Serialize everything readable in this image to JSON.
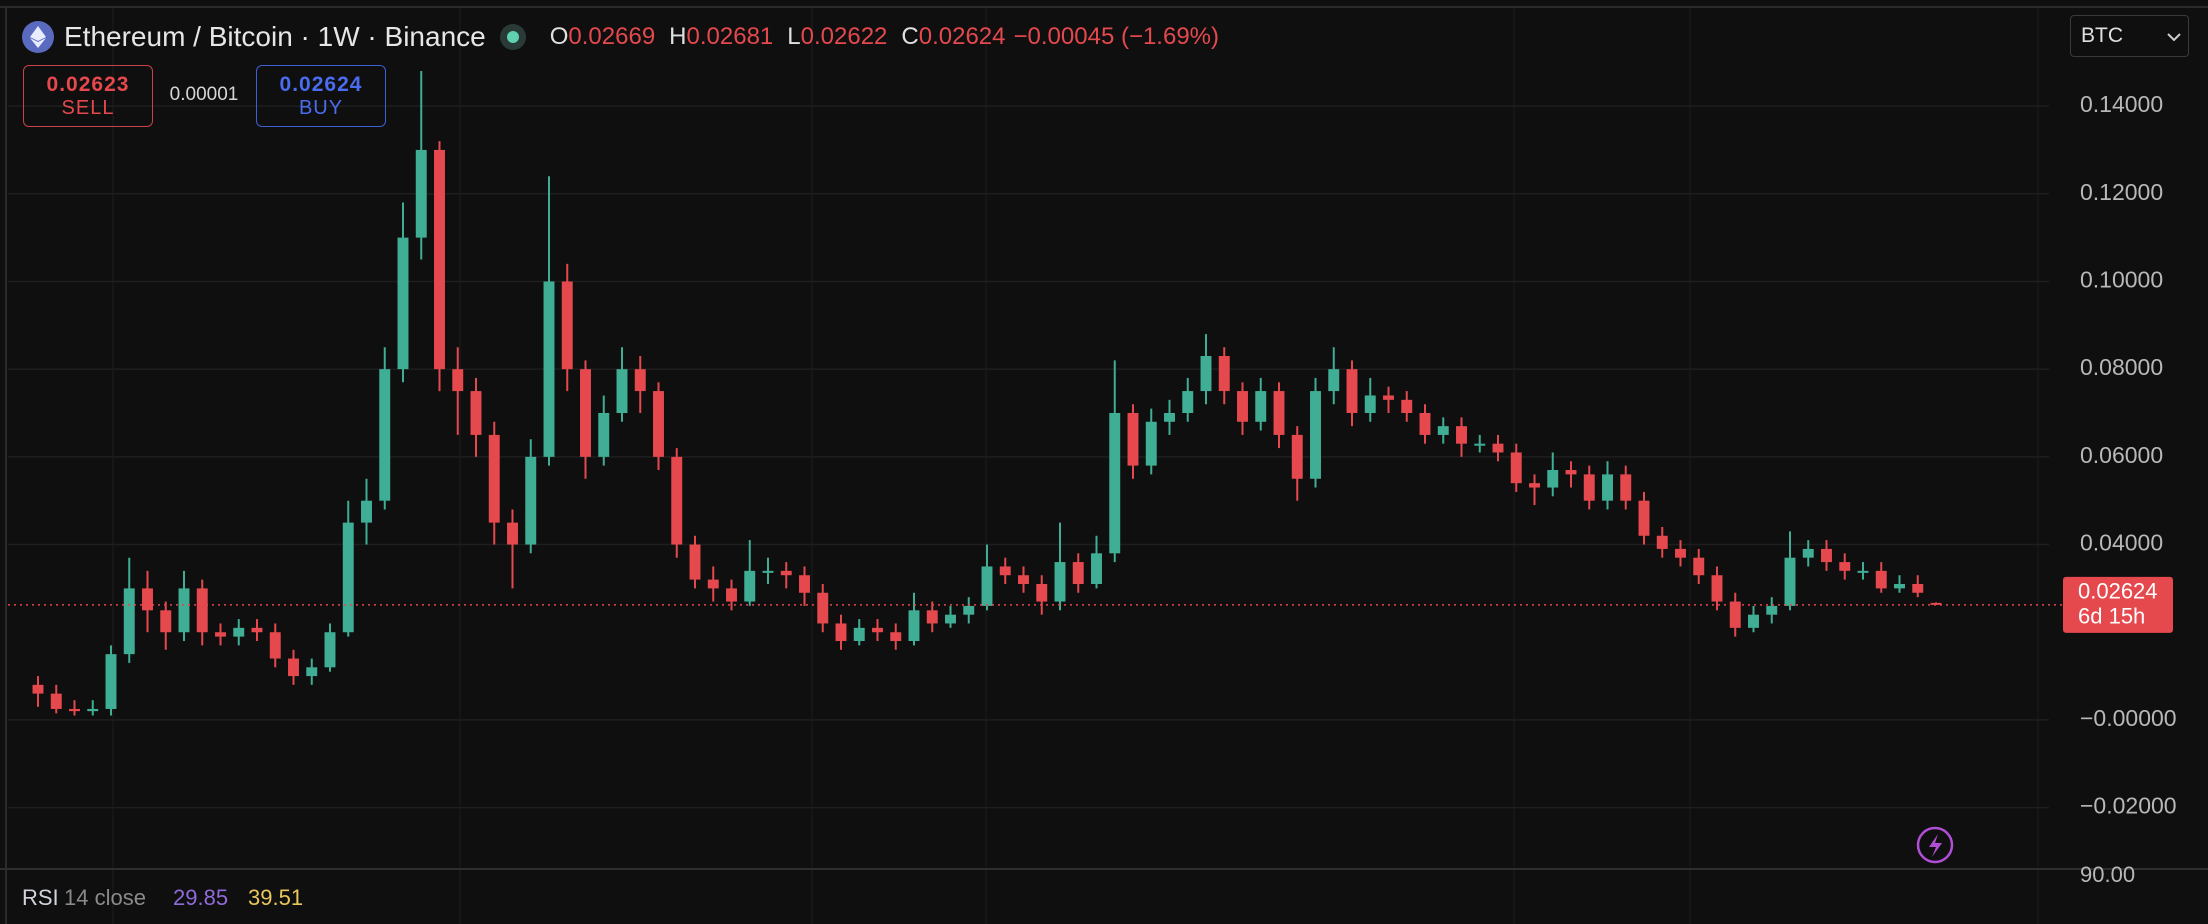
{
  "header": {
    "title": "Ethereum / Bitcoin · 1W · Binance",
    "ohlc": [
      {
        "key": "O",
        "value": "0.02669"
      },
      {
        "key": "H",
        "value": "0.02681"
      },
      {
        "key": "L",
        "value": "0.02622"
      },
      {
        "key": "C",
        "value": "0.02624"
      }
    ],
    "change": "−0.00045 (−1.69%)",
    "currency": "BTC"
  },
  "order_panel": {
    "sell_price": "0.02623",
    "sell_label": "SELL",
    "spread": "0.00001",
    "buy_price": "0.02624",
    "buy_label": "BUY"
  },
  "indicator": {
    "name": "RSI",
    "params": "14 close",
    "values": [
      "29.85",
      "39.51"
    ],
    "axis_label": "90.00"
  },
  "chart_data": {
    "type": "candlestick",
    "up_color": "#3fae95",
    "down_color": "#e5484d",
    "grid": true,
    "ylim": [
      -0.034,
      0.161
    ],
    "yticks": [
      {
        "value": 0.14,
        "label": "0.14000"
      },
      {
        "value": 0.12,
        "label": "0.12000"
      },
      {
        "value": 0.1,
        "label": "0.10000"
      },
      {
        "value": 0.08,
        "label": "0.08000"
      },
      {
        "value": 0.06,
        "label": "0.06000"
      },
      {
        "value": 0.04,
        "label": "0.04000"
      },
      {
        "value": 0,
        "label": "−0.00000"
      },
      {
        "value": -0.02,
        "label": "−0.02000"
      }
    ],
    "last_price": 0.02624,
    "countdown": "6d 15h",
    "series": {
      "open": [
        0.008,
        0.006,
        0.0025,
        0.002,
        0.0025,
        0.015,
        0.03,
        0.025,
        0.02,
        0.03,
        0.02,
        0.019,
        0.021,
        0.02,
        0.014,
        0.01,
        0.012,
        0.02,
        0.045,
        0.05,
        0.08,
        0.11,
        0.13,
        0.08,
        0.075,
        0.065,
        0.045,
        0.04,
        0.06,
        0.1,
        0.08,
        0.06,
        0.07,
        0.08,
        0.075,
        0.06,
        0.04,
        0.032,
        0.03,
        0.027,
        0.034,
        0.034,
        0.033,
        0.029,
        0.022,
        0.018,
        0.021,
        0.02,
        0.018,
        0.025,
        0.022,
        0.024,
        0.026,
        0.035,
        0.033,
        0.031,
        0.027,
        0.036,
        0.031,
        0.038,
        0.07,
        0.058,
        0.068,
        0.07,
        0.075,
        0.083,
        0.075,
        0.068,
        0.075,
        0.065,
        0.055,
        0.075,
        0.08,
        0.07,
        0.074,
        0.073,
        0.07,
        0.065,
        0.067,
        0.063,
        0.063,
        0.061,
        0.054,
        0.053,
        0.057,
        0.056,
        0.05,
        0.056,
        0.05,
        0.042,
        0.039,
        0.037,
        0.033,
        0.027,
        0.021,
        0.024,
        0.026,
        0.037,
        0.039,
        0.036,
        0.034,
        0.034,
        0.03,
        0.031,
        0.02669
      ],
      "high": [
        0.01,
        0.008,
        0.0045,
        0.0045,
        0.017,
        0.037,
        0.034,
        0.027,
        0.034,
        0.032,
        0.022,
        0.023,
        0.023,
        0.022,
        0.016,
        0.014,
        0.022,
        0.05,
        0.055,
        0.085,
        0.118,
        0.148,
        0.132,
        0.085,
        0.078,
        0.068,
        0.048,
        0.064,
        0.124,
        0.104,
        0.082,
        0.074,
        0.085,
        0.083,
        0.077,
        0.062,
        0.042,
        0.035,
        0.032,
        0.041,
        0.037,
        0.036,
        0.035,
        0.031,
        0.024,
        0.023,
        0.023,
        0.022,
        0.029,
        0.027,
        0.026,
        0.028,
        0.04,
        0.037,
        0.035,
        0.033,
        0.045,
        0.038,
        0.042,
        0.082,
        0.072,
        0.071,
        0.073,
        0.078,
        0.088,
        0.085,
        0.077,
        0.078,
        0.077,
        0.067,
        0.078,
        0.085,
        0.082,
        0.078,
        0.076,
        0.075,
        0.072,
        0.069,
        0.069,
        0.065,
        0.065,
        0.063,
        0.056,
        0.061,
        0.059,
        0.058,
        0.059,
        0.058,
        0.052,
        0.044,
        0.041,
        0.039,
        0.035,
        0.029,
        0.026,
        0.028,
        0.043,
        0.041,
        0.041,
        0.038,
        0.036,
        0.036,
        0.033,
        0.033,
        0.02681
      ],
      "low": [
        0.003,
        0.0015,
        0.001,
        0.001,
        0.001,
        0.013,
        0.02,
        0.016,
        0.018,
        0.017,
        0.017,
        0.017,
        0.018,
        0.012,
        0.008,
        0.008,
        0.011,
        0.019,
        0.04,
        0.048,
        0.077,
        0.105,
        0.075,
        0.065,
        0.06,
        0.04,
        0.03,
        0.038,
        0.058,
        0.075,
        0.055,
        0.058,
        0.068,
        0.07,
        0.057,
        0.037,
        0.03,
        0.027,
        0.025,
        0.026,
        0.031,
        0.03,
        0.026,
        0.02,
        0.016,
        0.017,
        0.018,
        0.016,
        0.017,
        0.02,
        0.021,
        0.022,
        0.025,
        0.031,
        0.029,
        0.024,
        0.025,
        0.029,
        0.03,
        0.036,
        0.055,
        0.056,
        0.065,
        0.068,
        0.072,
        0.072,
        0.065,
        0.066,
        0.062,
        0.05,
        0.053,
        0.072,
        0.067,
        0.068,
        0.07,
        0.068,
        0.063,
        0.063,
        0.06,
        0.061,
        0.059,
        0.052,
        0.049,
        0.051,
        0.053,
        0.048,
        0.048,
        0.048,
        0.04,
        0.037,
        0.035,
        0.031,
        0.025,
        0.019,
        0.02,
        0.022,
        0.025,
        0.035,
        0.034,
        0.032,
        0.032,
        0.029,
        0.029,
        0.028,
        0.02622
      ],
      "close": [
        0.006,
        0.0025,
        0.002,
        0.0025,
        0.015,
        0.03,
        0.025,
        0.02,
        0.03,
        0.02,
        0.019,
        0.021,
        0.02,
        0.014,
        0.01,
        0.012,
        0.02,
        0.045,
        0.05,
        0.08,
        0.11,
        0.13,
        0.08,
        0.075,
        0.065,
        0.045,
        0.04,
        0.06,
        0.1,
        0.08,
        0.06,
        0.07,
        0.08,
        0.075,
        0.06,
        0.04,
        0.032,
        0.03,
        0.027,
        0.034,
        0.034,
        0.033,
        0.029,
        0.022,
        0.018,
        0.021,
        0.02,
        0.018,
        0.025,
        0.022,
        0.024,
        0.026,
        0.035,
        0.033,
        0.031,
        0.027,
        0.036,
        0.031,
        0.038,
        0.07,
        0.058,
        0.068,
        0.07,
        0.075,
        0.083,
        0.075,
        0.068,
        0.075,
        0.065,
        0.055,
        0.075,
        0.08,
        0.07,
        0.074,
        0.073,
        0.07,
        0.065,
        0.067,
        0.063,
        0.063,
        0.061,
        0.054,
        0.053,
        0.057,
        0.056,
        0.05,
        0.056,
        0.05,
        0.042,
        0.039,
        0.037,
        0.033,
        0.027,
        0.021,
        0.024,
        0.026,
        0.037,
        0.039,
        0.036,
        0.034,
        0.034,
        0.03,
        0.031,
        0.029,
        0.02624
      ]
    }
  }
}
